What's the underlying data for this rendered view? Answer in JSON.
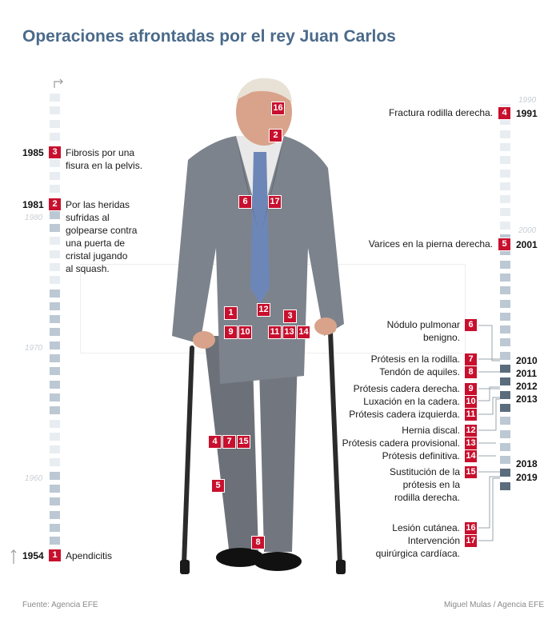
{
  "title": "Operaciones afrontadas por el rey Juan Carlos",
  "decades": {
    "d1990": "1990",
    "d2000": "2000",
    "d1980": "1980",
    "d1970": "1970",
    "d1960": "1960"
  },
  "left_events": {
    "e1985": {
      "year": "1985",
      "num": "3",
      "lines": [
        "Fibrosis por una",
        "fisura en la pelvis."
      ]
    },
    "e1981": {
      "year": "1981",
      "num": "2",
      "lines": [
        "Por las heridas",
        "sufridas al",
        "golpearse contra",
        "una puerta de",
        "cristal jugando",
        "al squash."
      ]
    },
    "e1954": {
      "year": "1954",
      "num": "1",
      "text": "Apendicitis"
    }
  },
  "right_events": {
    "e1991": {
      "year": "1991",
      "num": "4",
      "text": "Fractura rodilla derecha."
    },
    "e2001": {
      "year": "2001",
      "num": "5",
      "text": "Varices en la pierna derecha."
    },
    "e6": {
      "num": "6",
      "lines": [
        "Nódulo pulmonar",
        "benigno."
      ]
    },
    "e7": {
      "num": "7",
      "text": "Prótesis en la rodilla."
    },
    "e8": {
      "num": "8",
      "text": "Tendón de aquiles."
    },
    "e9": {
      "num": "9",
      "text": "Prótesis cadera derecha."
    },
    "e10": {
      "num": "10",
      "text": "Luxación en la cadera."
    },
    "e11": {
      "num": "11",
      "text": "Prótesis cadera izquierda."
    },
    "e12": {
      "num": "12",
      "text": "Hernia discal."
    },
    "e13": {
      "num": "13",
      "text": "Prótesis cadera provisional."
    },
    "e14": {
      "num": "14",
      "text": "Prótesis definitiva."
    },
    "e15": {
      "num": "15",
      "lines": [
        "Sustitución de la",
        "prótesis en la",
        "rodilla derecha."
      ]
    },
    "e16": {
      "num": "16",
      "text": "Lesión cutánea."
    },
    "e17": {
      "num": "17",
      "lines": [
        "Intervención",
        "quirúrgica cardíaca."
      ]
    }
  },
  "right_years": {
    "y2010": "2010",
    "y2011": "2011",
    "y2012": "2012",
    "y2013": "2013",
    "y2018": "2018",
    "y2019": "2019"
  },
  "body_markers": [
    "16",
    "2",
    "6",
    "17",
    "1",
    "12",
    "3",
    "9",
    "10",
    "11",
    "13",
    "14",
    "4",
    "7",
    "15",
    "5",
    "8"
  ],
  "footer": {
    "source": "Fuente: Agencia EFE",
    "credit": "Miguel Mulas / Agencia EFE"
  },
  "colors": {
    "title": "#4a6a8a",
    "badge": "#c8102e",
    "strip_empty": "#e8edf2",
    "strip_lived": "#bcc8d3",
    "strip_operation": "#5b6c7d"
  }
}
